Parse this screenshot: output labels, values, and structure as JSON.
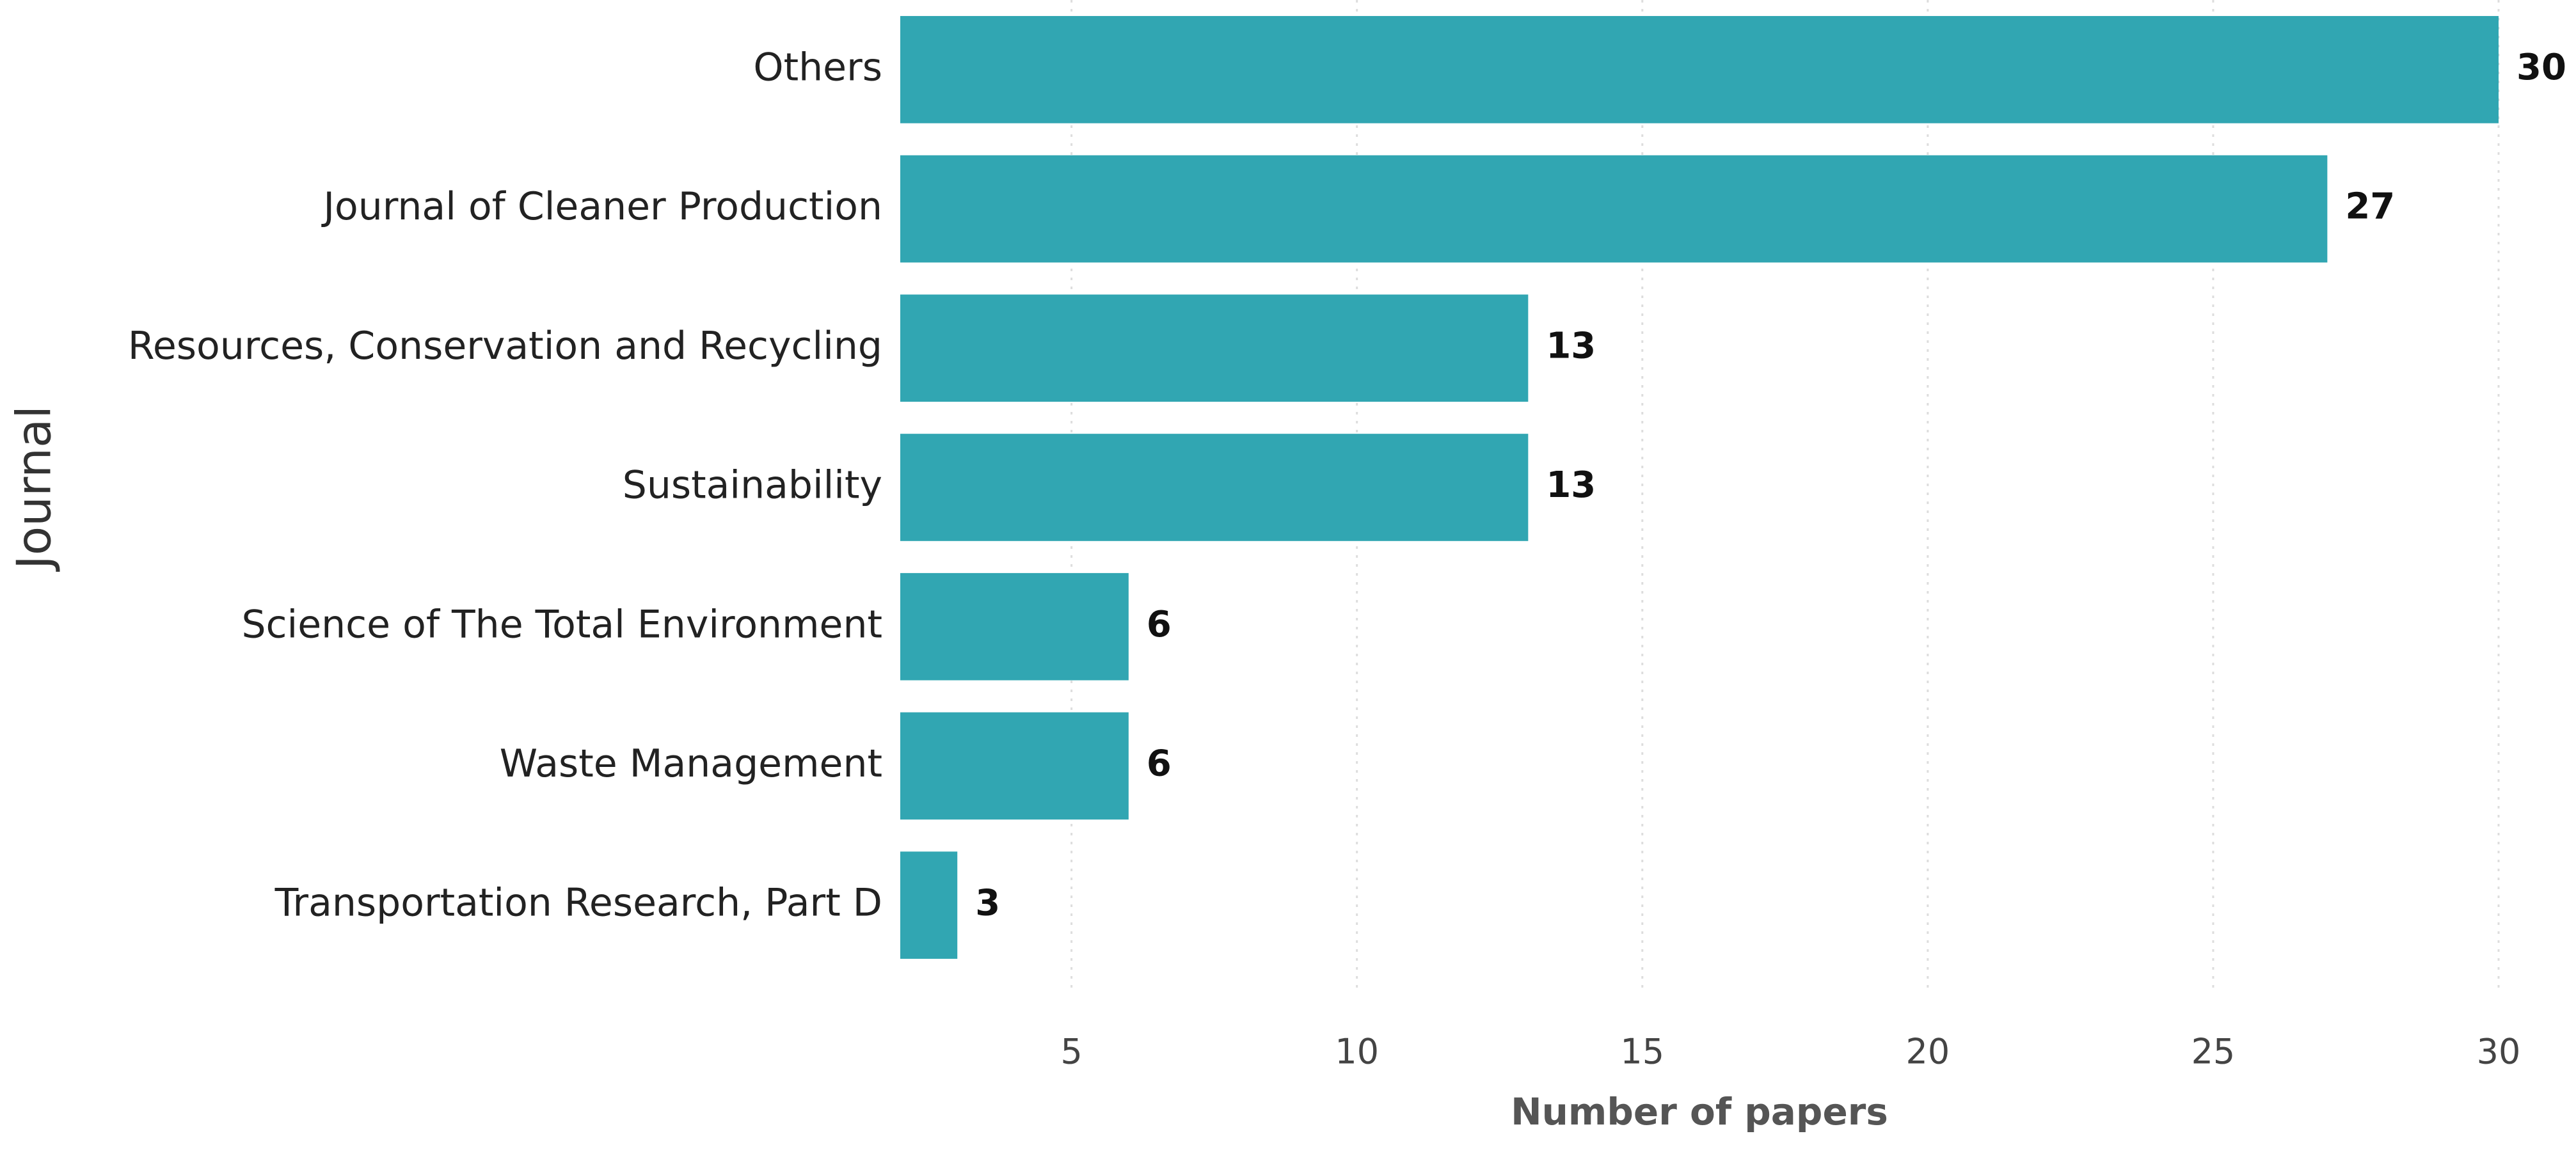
{
  "chart_data": {
    "type": "barh",
    "y_label": "Journal",
    "x_label": "Number of papers",
    "categories": [
      "Others",
      "Journal of Cleaner Production",
      "Resources, Conservation and Recycling",
      "Sustainability",
      "Science of The Total Environment",
      "Waste Management",
      "Transportation Research, Part D"
    ],
    "values": [
      30,
      27,
      13,
      13,
      6,
      6,
      3
    ],
    "color": "#31a6b2",
    "xlim": [
      2,
      30
    ],
    "xticks": [
      5,
      10,
      15,
      20,
      25,
      30
    ],
    "grid": true
  }
}
